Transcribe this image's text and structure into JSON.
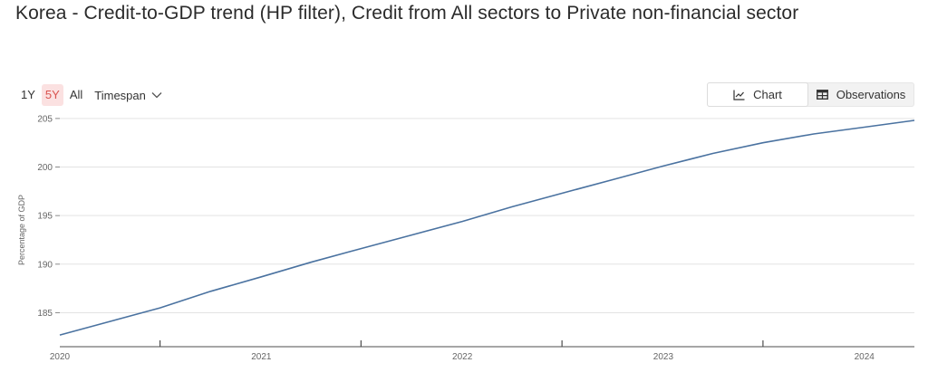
{
  "title": "Korea - Credit-to-GDP trend (HP filter), Credit from All sectors to Private non-financial sector",
  "range_buttons": [
    {
      "label": "1Y",
      "active": false
    },
    {
      "label": "5Y",
      "active": true
    },
    {
      "label": "All",
      "active": false
    }
  ],
  "timespan_label": "Timespan",
  "view_toggle": {
    "chart_label": "Chart",
    "observations_label": "Observations",
    "active": "Chart"
  },
  "colors": {
    "line": "#4a72a0",
    "active_range_bg": "#fbe1e1",
    "active_range_text": "#d9534f"
  },
  "chart_data": {
    "type": "line",
    "title": "",
    "xlabel": "",
    "ylabel": "Percentage of GDP",
    "x_ticks": [
      "2020",
      "2021",
      "2022",
      "2023",
      "2024"
    ],
    "y_ticks": [
      185,
      190,
      195,
      200,
      205
    ],
    "xlim": [
      "2020-01-01",
      "2024-04-01"
    ],
    "ylim": [
      181.5,
      206.2
    ],
    "grid": "horizontal",
    "series": [
      {
        "name": "",
        "color": "#4a72a0",
        "points": [
          {
            "x": "2020-01-01",
            "y": 182.7
          },
          {
            "x": "2020-04-01",
            "y": 184.1
          },
          {
            "x": "2020-07-01",
            "y": 185.5
          },
          {
            "x": "2020-10-01",
            "y": 187.2
          },
          {
            "x": "2021-01-01",
            "y": 188.7
          },
          {
            "x": "2021-04-01",
            "y": 190.2
          },
          {
            "x": "2021-07-01",
            "y": 191.6
          },
          {
            "x": "2021-10-01",
            "y": 193.0
          },
          {
            "x": "2022-01-01",
            "y": 194.4
          },
          {
            "x": "2022-04-01",
            "y": 195.9
          },
          {
            "x": "2022-07-01",
            "y": 197.3
          },
          {
            "x": "2022-10-01",
            "y": 198.7
          },
          {
            "x": "2023-01-01",
            "y": 200.1
          },
          {
            "x": "2023-04-01",
            "y": 201.4
          },
          {
            "x": "2023-07-01",
            "y": 202.5
          },
          {
            "x": "2023-10-01",
            "y": 203.4
          },
          {
            "x": "2024-01-01",
            "y": 204.1
          },
          {
            "x": "2024-04-01",
            "y": 204.8
          }
        ]
      }
    ]
  }
}
